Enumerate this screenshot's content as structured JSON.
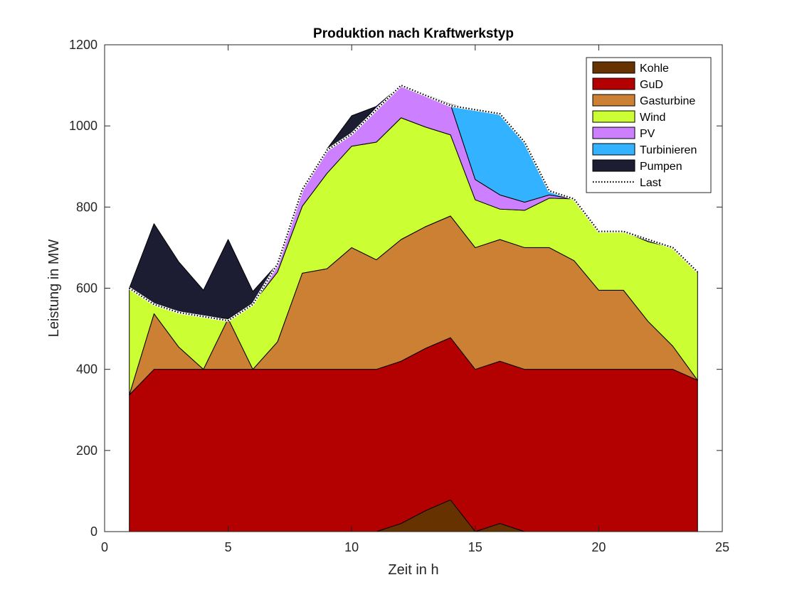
{
  "chart_data": {
    "type": "area",
    "title": "Produktion nach Kraftwerkstyp",
    "xlabel": "Zeit in h",
    "ylabel": "Leistung in MW",
    "xlim": [
      0,
      25
    ],
    "ylim": [
      0,
      1200
    ],
    "xticks": [
      0,
      5,
      10,
      15,
      20,
      25
    ],
    "yticks": [
      0,
      200,
      400,
      600,
      800,
      1000,
      1200
    ],
    "legend_position": "top-right",
    "x": [
      1,
      2,
      3,
      4,
      5,
      6,
      7,
      8,
      9,
      10,
      11,
      12,
      13,
      14,
      15,
      16,
      17,
      18,
      19,
      20,
      21,
      22,
      23,
      24
    ],
    "series": [
      {
        "name": "Kohle",
        "color": "#663300",
        "values": [
          0,
          0,
          0,
          0,
          0,
          0,
          0,
          0,
          0,
          0,
          0,
          20,
          52,
          78,
          0,
          20,
          0,
          0,
          0,
          0,
          0,
          0,
          0,
          0
        ]
      },
      {
        "name": "GuD",
        "color": "#B30000",
        "values": [
          337,
          400,
          400,
          400,
          400,
          400,
          400,
          400,
          400,
          400,
          400,
          400,
          400,
          400,
          400,
          400,
          400,
          400,
          400,
          400,
          400,
          400,
          400,
          373
        ]
      },
      {
        "name": "Gasturbine",
        "color": "#CC8033",
        "values": [
          0,
          137,
          55,
          0,
          125,
          0,
          68,
          237,
          248,
          300,
          270,
          300,
          300,
          300,
          300,
          300,
          300,
          300,
          268,
          195,
          195,
          118,
          57,
          0
        ]
      },
      {
        "name": "Wind",
        "color": "#CCFF33",
        "values": [
          263,
          22,
          85,
          130,
          0,
          162,
          172,
          165,
          235,
          250,
          290,
          300,
          245,
          200,
          118,
          75,
          92,
          122,
          152,
          145,
          145,
          197,
          243,
          267
        ]
      },
      {
        "name": "PV",
        "color": "#CC80FF",
        "values": [
          0,
          0,
          0,
          0,
          0,
          0,
          20,
          40,
          60,
          30,
          88,
          80,
          80,
          75,
          50,
          35,
          20,
          8,
          0,
          0,
          0,
          0,
          0,
          0
        ]
      },
      {
        "name": "Turbinieren",
        "color": "#33B3FF",
        "values": [
          0,
          0,
          0,
          0,
          0,
          0,
          0,
          0,
          0,
          0,
          0,
          0,
          0,
          0,
          172,
          200,
          150,
          10,
          0,
          0,
          0,
          0,
          0,
          0
        ]
      },
      {
        "name": "Pumpen",
        "color": "#1C1C33",
        "values": [
          0,
          200,
          125,
          65,
          195,
          30,
          0,
          0,
          0,
          45,
          0,
          0,
          0,
          0,
          0,
          0,
          0,
          0,
          0,
          0,
          0,
          0,
          0,
          0
        ]
      }
    ],
    "load": {
      "name": "Last",
      "values": [
        600,
        560,
        540,
        530,
        520,
        560,
        660,
        843,
        940,
        980,
        1040,
        1100,
        1075,
        1050,
        1040,
        1030,
        960,
        840,
        820,
        740,
        740,
        720,
        700,
        640
      ]
    }
  }
}
